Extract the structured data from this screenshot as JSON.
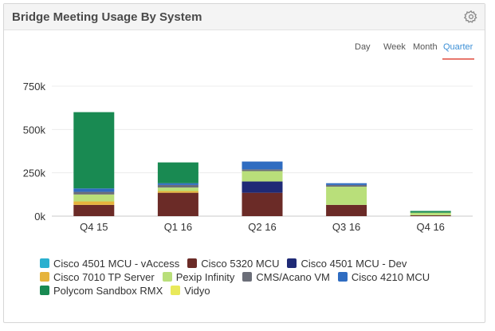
{
  "widget": {
    "title": "Bridge Meeting Usage By System",
    "tabs": [
      {
        "label": "Day",
        "active": false
      },
      {
        "label": "Week",
        "active": false
      },
      {
        "label": "Month",
        "active": false
      },
      {
        "label": "Quarter",
        "active": true
      }
    ],
    "settings_icon": "gear-icon"
  },
  "chart_data": {
    "type": "bar",
    "stacked": true,
    "title": "",
    "xlabel": "",
    "ylabel": "",
    "ylim": [
      0,
      750000
    ],
    "yticks": [
      0,
      250000,
      500000,
      750000
    ],
    "ytick_labels": [
      "0k",
      "250k",
      "500k",
      "750k"
    ],
    "grid": true,
    "legend_position": "bottom",
    "categories": [
      "Q4 15",
      "Q1 16",
      "Q2 16",
      "Q3 16",
      "Q4 16"
    ],
    "series": [
      {
        "name": "Cisco 4501 MCU - vAccess",
        "color": "#2ab0cf",
        "values": [
          0,
          0,
          0,
          0,
          0
        ]
      },
      {
        "name": "Cisco 5320 MCU",
        "color": "#6b2b27",
        "values": [
          65000,
          135000,
          135000,
          65000,
          5000
        ]
      },
      {
        "name": "Cisco 4501 MCU - Dev",
        "color": "#1f2a76",
        "values": [
          0,
          0,
          65000,
          0,
          0
        ]
      },
      {
        "name": "Cisco 7010 TP Server",
        "color": "#e6b43c",
        "values": [
          20000,
          10000,
          0,
          0,
          0
        ]
      },
      {
        "name": "Pexip Infinity",
        "color": "#b9df7a",
        "values": [
          40000,
          20000,
          60000,
          105000,
          15000
        ]
      },
      {
        "name": "CMS/Acano VM",
        "color": "#6b6e78",
        "values": [
          15000,
          15000,
          10000,
          10000,
          0
        ]
      },
      {
        "name": "Cisco 4210 MCU",
        "color": "#2f6cc1",
        "values": [
          20000,
          10000,
          45000,
          10000,
          0
        ]
      },
      {
        "name": "Polycom Sandbox RMX",
        "color": "#198a52",
        "values": [
          440000,
          120000,
          0,
          0,
          10000
        ]
      },
      {
        "name": "Vidyo",
        "color": "#e9e95a",
        "values": [
          0,
          0,
          0,
          0,
          0
        ]
      }
    ]
  }
}
